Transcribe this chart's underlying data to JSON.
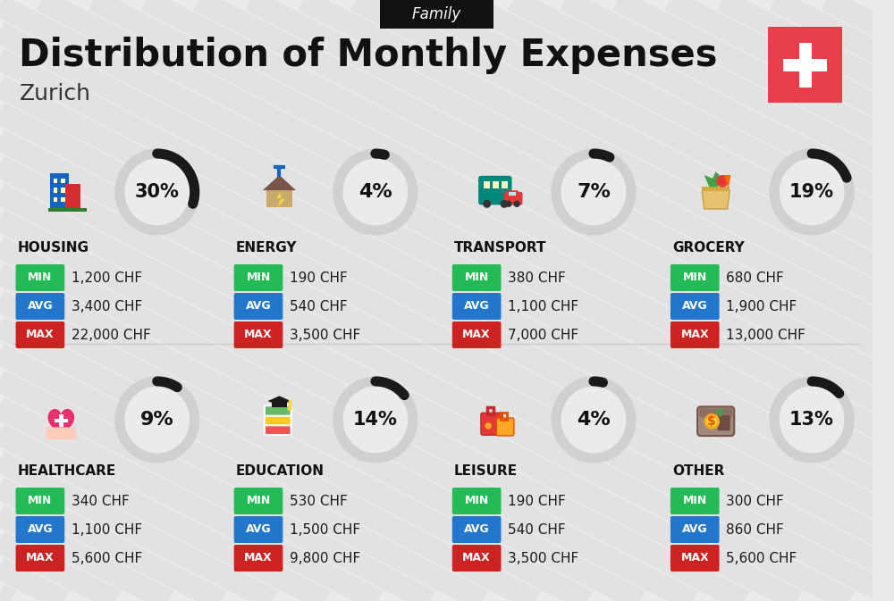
{
  "title": "Distribution of Monthly Expenses",
  "subtitle": "Family",
  "city": "Zurich",
  "bg_color": "#ebebeb",
  "header_bg": "#111111",
  "header_text_color": "#ffffff",
  "title_color": "#111111",
  "city_color": "#333333",
  "flag_color": "#e8404a",
  "categories": [
    {
      "name": "HOUSING",
      "pct": 30,
      "min_val": "1,200 CHF",
      "avg_val": "3,400 CHF",
      "max_val": "22,000 CHF",
      "col": 0,
      "row": 0
    },
    {
      "name": "ENERGY",
      "pct": 4,
      "min_val": "190 CHF",
      "avg_val": "540 CHF",
      "max_val": "3,500 CHF",
      "col": 1,
      "row": 0
    },
    {
      "name": "TRANSPORT",
      "pct": 7,
      "min_val": "380 CHF",
      "avg_val": "1,100 CHF",
      "max_val": "7,000 CHF",
      "col": 2,
      "row": 0
    },
    {
      "name": "GROCERY",
      "pct": 19,
      "min_val": "680 CHF",
      "avg_val": "1,900 CHF",
      "max_val": "13,000 CHF",
      "col": 3,
      "row": 0
    },
    {
      "name": "HEALTHCARE",
      "pct": 9,
      "min_val": "340 CHF",
      "avg_val": "1,100 CHF",
      "max_val": "5,600 CHF",
      "col": 0,
      "row": 1
    },
    {
      "name": "EDUCATION",
      "pct": 14,
      "min_val": "530 CHF",
      "avg_val": "1,500 CHF",
      "max_val": "9,800 CHF",
      "col": 1,
      "row": 1
    },
    {
      "name": "LEISURE",
      "pct": 4,
      "min_val": "190 CHF",
      "avg_val": "540 CHF",
      "max_val": "3,500 CHF",
      "col": 2,
      "row": 1
    },
    {
      "name": "OTHER",
      "pct": 13,
      "min_val": "300 CHF",
      "avg_val": "860 CHF",
      "max_val": "5,600 CHF",
      "col": 3,
      "row": 1
    }
  ],
  "min_color": "#22bb55",
  "avg_color": "#2277cc",
  "max_color": "#cc2222",
  "label_text_color": "#ffffff",
  "value_text_color": "#1a1a1a",
  "category_text_color": "#111111",
  "pct_text_color": "#111111",
  "circle_bg_color": "#d0d0d0",
  "circle_fill": "#ebebeb",
  "arc_color": "#1a1a1a",
  "stripe_color": "#e0e0e0",
  "divider_color": "#cccccc"
}
